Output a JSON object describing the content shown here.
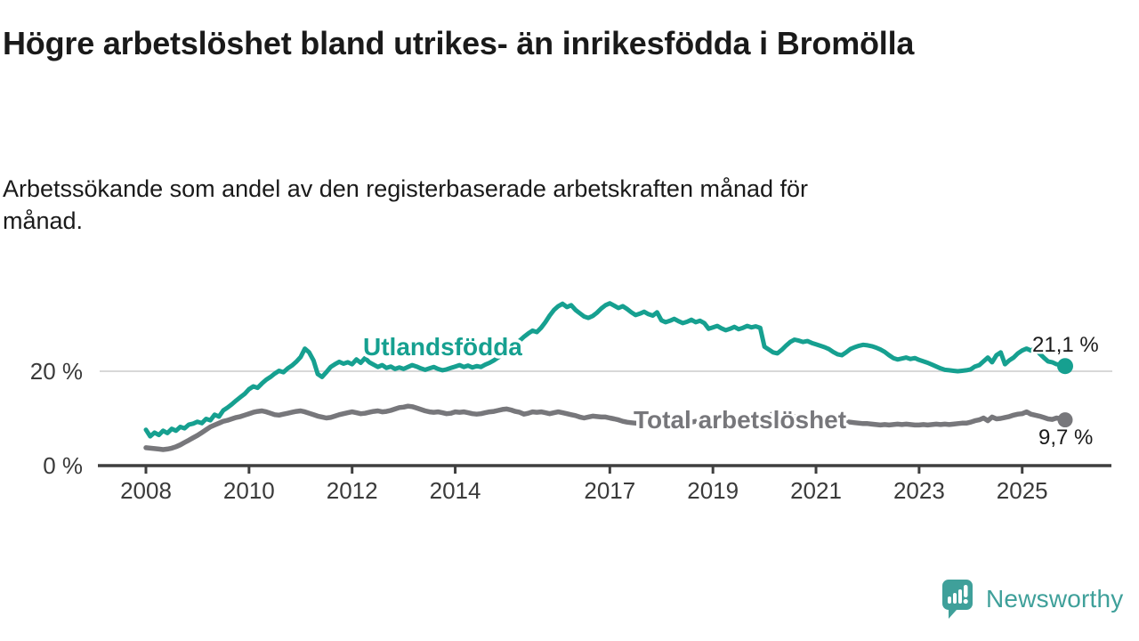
{
  "chart_data": {
    "type": "line",
    "title": "Högre arbetslöshet bland utrikes- än inrikesfödda i Bromölla",
    "subtitle": "Arbetssökande som andel av den registerbaserade arbetskraften månad för månad.",
    "unit": "%",
    "x_axis": {
      "frequency": "monthly",
      "start_month": "2008-01",
      "end_month": "2025-11",
      "tick_years": [
        2008,
        2010,
        2012,
        2014,
        2017,
        2019,
        2021,
        2023,
        2025
      ]
    },
    "y_axis": {
      "ticks": [
        {
          "label": "20 %",
          "value": 20
        },
        {
          "label": "0 %",
          "value": 0
        }
      ],
      "range": [
        0,
        40
      ],
      "gridline_at": 20
    },
    "legend_position": "inline-labels-on-lines",
    "series": [
      {
        "name": "Utlandsfödda",
        "color": "#16a090",
        "end_label": "21,1 %",
        "last_value": 21.1,
        "values": [
          7.6,
          6.2,
          7.0,
          6.5,
          7.4,
          6.9,
          7.8,
          7.4,
          8.2,
          7.9,
          8.7,
          8.9,
          9.3,
          9.0,
          9.9,
          9.6,
          10.8,
          10.4,
          11.7,
          12.3,
          13.0,
          13.8,
          14.5,
          15.2,
          16.2,
          16.8,
          16.5,
          17.4,
          18.2,
          18.8,
          19.5,
          20.1,
          19.8,
          20.6,
          21.2,
          22.0,
          23.0,
          24.8,
          24.0,
          22.3,
          19.4,
          18.8,
          19.8,
          20.9,
          21.5,
          22.0,
          21.6,
          21.9,
          21.5,
          22.5,
          21.8,
          22.8,
          21.9,
          21.4,
          20.9,
          21.3,
          20.7,
          21.0,
          20.5,
          20.8,
          20.5,
          20.9,
          21.3,
          21.0,
          20.6,
          20.3,
          20.6,
          20.9,
          20.5,
          20.2,
          20.4,
          20.7,
          21.0,
          21.3,
          20.9,
          21.2,
          20.8,
          21.1,
          20.9,
          21.4,
          21.8,
          22.3,
          22.9,
          23.6,
          24.3,
          25.1,
          25.8,
          26.5,
          27.3,
          28.0,
          28.6,
          28.3,
          29.2,
          30.4,
          31.8,
          33.0,
          33.8,
          34.3,
          33.6,
          34.0,
          33.0,
          32.3,
          31.6,
          31.3,
          31.7,
          32.4,
          33.3,
          34.0,
          34.4,
          33.9,
          33.4,
          33.8,
          33.2,
          32.5,
          31.9,
          32.2,
          32.6,
          32.1,
          31.8,
          32.5,
          30.8,
          30.4,
          30.7,
          31.1,
          30.6,
          30.2,
          30.5,
          30.9,
          30.4,
          30.7,
          30.2,
          29.0,
          29.3,
          29.6,
          29.1,
          28.7,
          29.0,
          29.4,
          28.9,
          29.2,
          29.6,
          29.3,
          29.5,
          29.2,
          25.2,
          24.6,
          24.0,
          23.8,
          24.5,
          25.4,
          26.2,
          26.7,
          26.5,
          26.2,
          26.4,
          26.0,
          25.7,
          25.4,
          25.1,
          24.7,
          24.1,
          23.6,
          23.4,
          24.0,
          24.7,
          25.1,
          25.4,
          25.6,
          25.5,
          25.3,
          25.0,
          24.6,
          24.1,
          23.4,
          22.8,
          22.5,
          22.7,
          22.9,
          22.6,
          22.8,
          22.4,
          22.1,
          21.8,
          21.4,
          21.0,
          20.6,
          20.3,
          20.2,
          20.1,
          20.0,
          20.1,
          20.2,
          20.4,
          21.0,
          21.3,
          22.1,
          22.9,
          21.9,
          23.4,
          24.0,
          21.5,
          22.3,
          22.9,
          23.8,
          24.4,
          24.8,
          24.4,
          24.8,
          23.8,
          22.9,
          22.1,
          21.9,
          21.5,
          21.3,
          21.1
        ]
      },
      {
        "name": "Total arbetslöshet",
        "color": "#77777b",
        "end_label": "9,7 %",
        "last_value": 9.7,
        "values": [
          3.8,
          3.7,
          3.6,
          3.5,
          3.4,
          3.5,
          3.7,
          4.0,
          4.4,
          4.9,
          5.4,
          5.9,
          6.4,
          7.0,
          7.6,
          8.2,
          8.6,
          9.0,
          9.4,
          9.6,
          9.9,
          10.2,
          10.4,
          10.7,
          11.0,
          11.3,
          11.5,
          11.6,
          11.4,
          11.1,
          10.8,
          10.7,
          10.9,
          11.1,
          11.3,
          11.5,
          11.6,
          11.4,
          11.1,
          10.8,
          10.5,
          10.3,
          10.1,
          10.2,
          10.5,
          10.8,
          11.0,
          11.2,
          11.4,
          11.2,
          11.0,
          11.1,
          11.3,
          11.5,
          11.6,
          11.4,
          11.5,
          11.7,
          12.0,
          12.3,
          12.4,
          12.6,
          12.5,
          12.2,
          11.9,
          11.6,
          11.4,
          11.3,
          11.4,
          11.2,
          11.0,
          11.1,
          11.4,
          11.3,
          11.4,
          11.2,
          11.0,
          10.9,
          11.0,
          11.2,
          11.4,
          11.5,
          11.7,
          11.9,
          12.0,
          11.8,
          11.5,
          11.3,
          10.9,
          11.1,
          11.4,
          11.3,
          11.4,
          11.2,
          11.0,
          11.2,
          11.4,
          11.2,
          11.0,
          10.8,
          10.6,
          10.3,
          10.1,
          10.3,
          10.5,
          10.4,
          10.3,
          10.3,
          10.1,
          9.9,
          9.7,
          9.4,
          9.2,
          9.1,
          9.0,
          9.1,
          9.3,
          9.4,
          9.5,
          9.6,
          9.7,
          9.8,
          9.6,
          9.4,
          9.3,
          9.2,
          9.1,
          9.2,
          9.4,
          9.5,
          9.4,
          9.3,
          9.5,
          9.6,
          9.8,
          9.9,
          10.0,
          10.1,
          10.0,
          9.9,
          10.0,
          10.1,
          10.0,
          9.9,
          10.2,
          10.6,
          11.0,
          11.2,
          11.0,
          10.8,
          10.6,
          10.4,
          10.2,
          10.0,
          9.9,
          9.8,
          9.8,
          9.9,
          9.7,
          9.6,
          9.4,
          9.3,
          9.2,
          9.3,
          9.2,
          9.1,
          9.0,
          8.9,
          8.9,
          8.8,
          8.7,
          8.6,
          8.7,
          8.6,
          8.7,
          8.8,
          8.7,
          8.8,
          8.7,
          8.6,
          8.6,
          8.7,
          8.6,
          8.7,
          8.8,
          8.7,
          8.8,
          8.7,
          8.8,
          8.9,
          9.0,
          9.0,
          9.2,
          9.5,
          9.7,
          10.1,
          9.5,
          10.3,
          9.9,
          10.0,
          10.2,
          10.4,
          10.7,
          10.9,
          11.0,
          11.4,
          10.9,
          10.7,
          10.5,
          10.2,
          9.9,
          9.8,
          10.1,
          9.9,
          9.7
        ]
      }
    ],
    "colors": {
      "gridline": "#d8d8d8",
      "axis": "#3f3f3f",
      "tick_text": "#3a3a3a",
      "title_text": "#1a1a1a"
    }
  },
  "footer": {
    "logo_text": "Newsworthy",
    "logo_color": "#3fa09a"
  }
}
